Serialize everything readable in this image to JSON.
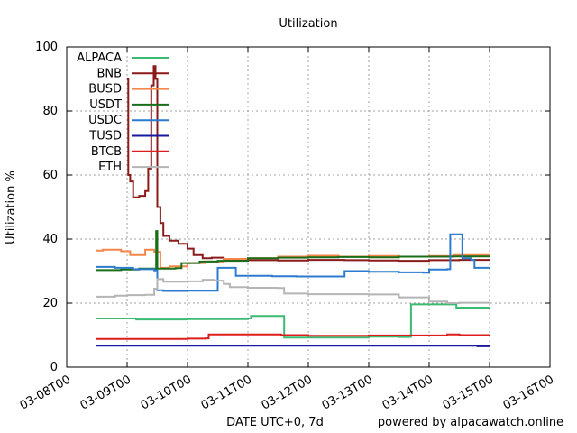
{
  "chart_data": {
    "type": "line",
    "title": "Utilization",
    "xlabel": "DATE UTC+0, 7d",
    "ylabel": "Utilization %",
    "footer": "powered by alpacawatch.online",
    "ylim": [
      0,
      100
    ],
    "yticks": [
      0,
      20,
      40,
      60,
      80,
      100
    ],
    "xlim": [
      "03-08T00",
      "03-16T00"
    ],
    "xticks": [
      "03-08T00",
      "03-09T00",
      "03-10T00",
      "03-11T00",
      "03-12T00",
      "03-13T00",
      "03-14T00",
      "03-15T00",
      "03-16T00"
    ],
    "grid": true,
    "legend_position": "top-left",
    "series": [
      {
        "name": "ALPACA",
        "color": "#3cba74",
        "points": [
          [
            0.48,
            15.2
          ],
          [
            1.0,
            15.2
          ],
          [
            1.15,
            14.9
          ],
          [
            2.0,
            15.0
          ],
          [
            3.0,
            15.2
          ],
          [
            3.05,
            16.0
          ],
          [
            3.6,
            16.0
          ],
          [
            3.6,
            9.2
          ],
          [
            4.6,
            9.2
          ],
          [
            5.0,
            9.5
          ],
          [
            5.5,
            9.4
          ],
          [
            5.68,
            9.5
          ],
          [
            5.7,
            19.6
          ],
          [
            6.35,
            19.6
          ],
          [
            6.45,
            18.6
          ],
          [
            7.0,
            18.6
          ]
        ]
      },
      {
        "name": "BNB",
        "color": "#8b1a1a",
        "points": [
          [
            1.0,
            90.0
          ],
          [
            1.02,
            60.0
          ],
          [
            1.05,
            58.0
          ],
          [
            1.1,
            53.0
          ],
          [
            1.2,
            53.5
          ],
          [
            1.3,
            55.0
          ],
          [
            1.35,
            62.0
          ],
          [
            1.4,
            88.0
          ],
          [
            1.44,
            94.0
          ],
          [
            1.47,
            90.0
          ],
          [
            1.5,
            50.0
          ],
          [
            1.55,
            45.0
          ],
          [
            1.6,
            41.0
          ],
          [
            1.7,
            39.5
          ],
          [
            1.85,
            38.5
          ],
          [
            2.0,
            37.0
          ],
          [
            2.1,
            35.0
          ],
          [
            2.25,
            34.0
          ],
          [
            2.4,
            34.2
          ],
          [
            2.6,
            33.5
          ],
          [
            3.0,
            33.4
          ],
          [
            3.5,
            33.3
          ],
          [
            4.0,
            33.5
          ],
          [
            4.6,
            33.4
          ],
          [
            5.0,
            33.3
          ],
          [
            5.5,
            33.2
          ],
          [
            6.0,
            33.4
          ],
          [
            6.5,
            33.5
          ],
          [
            7.0,
            33.3
          ]
        ]
      },
      {
        "name": "BUSD",
        "color": "#f4864a",
        "points": [
          [
            0.48,
            36.4
          ],
          [
            0.6,
            36.7
          ],
          [
            0.9,
            36.2
          ],
          [
            1.05,
            35.0
          ],
          [
            1.3,
            36.7
          ],
          [
            1.45,
            36.0
          ],
          [
            1.55,
            31.0
          ],
          [
            1.7,
            31.5
          ],
          [
            2.0,
            32.5
          ],
          [
            2.3,
            33.0
          ],
          [
            2.6,
            33.8
          ],
          [
            3.0,
            34.0
          ],
          [
            3.5,
            34.5
          ],
          [
            4.0,
            34.8
          ],
          [
            4.5,
            34.5
          ],
          [
            5.0,
            34.7
          ],
          [
            5.5,
            34.5
          ],
          [
            6.0,
            34.7
          ],
          [
            6.4,
            35.0
          ],
          [
            7.0,
            35.2
          ]
        ]
      },
      {
        "name": "USDT",
        "color": "#1a6e1a",
        "points": [
          [
            0.48,
            30.3
          ],
          [
            0.9,
            30.5
          ],
          [
            1.2,
            30.8
          ],
          [
            1.45,
            30.5
          ],
          [
            1.48,
            42.5
          ],
          [
            1.5,
            30.8
          ],
          [
            1.8,
            30.9
          ],
          [
            1.9,
            32.5
          ],
          [
            2.2,
            33.0
          ],
          [
            2.5,
            33.2
          ],
          [
            3.0,
            34.0
          ],
          [
            3.5,
            34.2
          ],
          [
            4.0,
            34.3
          ],
          [
            4.5,
            34.4
          ],
          [
            5.0,
            34.3
          ],
          [
            5.5,
            34.5
          ],
          [
            6.0,
            34.5
          ],
          [
            6.3,
            34.5
          ],
          [
            6.4,
            34.6
          ],
          [
            7.0,
            34.6
          ]
        ]
      },
      {
        "name": "USDC",
        "color": "#2c7bcf",
        "points": [
          [
            0.48,
            31.3
          ],
          [
            0.8,
            31.0
          ],
          [
            1.1,
            30.6
          ],
          [
            1.45,
            30.2
          ],
          [
            1.5,
            24.0
          ],
          [
            1.6,
            23.8
          ],
          [
            2.0,
            23.9
          ],
          [
            2.45,
            23.9
          ],
          [
            2.5,
            31.0
          ],
          [
            2.75,
            31.0
          ],
          [
            2.8,
            28.5
          ],
          [
            3.4,
            28.4
          ],
          [
            3.8,
            28.3
          ],
          [
            4.55,
            28.3
          ],
          [
            4.6,
            30.0
          ],
          [
            5.0,
            29.8
          ],
          [
            5.5,
            29.6
          ],
          [
            5.9,
            29.5
          ],
          [
            6.0,
            30.5
          ],
          [
            6.3,
            30.6
          ],
          [
            6.35,
            41.5
          ],
          [
            6.5,
            41.5
          ],
          [
            6.55,
            34.0
          ],
          [
            6.7,
            33.5
          ],
          [
            6.75,
            31.0
          ],
          [
            7.0,
            31.0
          ]
        ]
      },
      {
        "name": "TUSD",
        "color": "#1a1aa0",
        "points": [
          [
            0.48,
            6.7
          ],
          [
            2.0,
            6.7
          ],
          [
            4.0,
            6.7
          ],
          [
            6.0,
            6.7
          ],
          [
            6.8,
            6.5
          ],
          [
            7.0,
            6.5
          ]
        ]
      },
      {
        "name": "BTCB",
        "color": "#dd1c1c",
        "points": [
          [
            0.48,
            8.8
          ],
          [
            1.0,
            8.8
          ],
          [
            2.0,
            8.9
          ],
          [
            2.3,
            9.0
          ],
          [
            2.35,
            10.2
          ],
          [
            3.0,
            10.2
          ],
          [
            3.55,
            10.0
          ],
          [
            4.0,
            9.8
          ],
          [
            4.5,
            9.8
          ],
          [
            5.0,
            9.9
          ],
          [
            5.5,
            9.9
          ],
          [
            6.0,
            9.9
          ],
          [
            6.3,
            10.2
          ],
          [
            6.5,
            10.0
          ],
          [
            7.0,
            10.0
          ]
        ]
      },
      {
        "name": "ETH",
        "color": "#b5b5b5",
        "points": [
          [
            0.48,
            22.0
          ],
          [
            0.8,
            22.3
          ],
          [
            1.0,
            22.5
          ],
          [
            1.3,
            22.6
          ],
          [
            1.45,
            24.5
          ],
          [
            1.5,
            27.5
          ],
          [
            1.6,
            26.7
          ],
          [
            2.0,
            26.8
          ],
          [
            2.25,
            27.3
          ],
          [
            2.45,
            27.0
          ],
          [
            2.6,
            26.0
          ],
          [
            2.7,
            25.0
          ],
          [
            3.0,
            24.8
          ],
          [
            3.5,
            24.7
          ],
          [
            3.6,
            23.0
          ],
          [
            4.0,
            22.8
          ],
          [
            4.5,
            22.8
          ],
          [
            5.0,
            22.7
          ],
          [
            5.5,
            21.8
          ],
          [
            6.0,
            20.5
          ],
          [
            6.3,
            20.0
          ],
          [
            6.5,
            20.1
          ],
          [
            7.0,
            20.0
          ]
        ]
      }
    ]
  }
}
